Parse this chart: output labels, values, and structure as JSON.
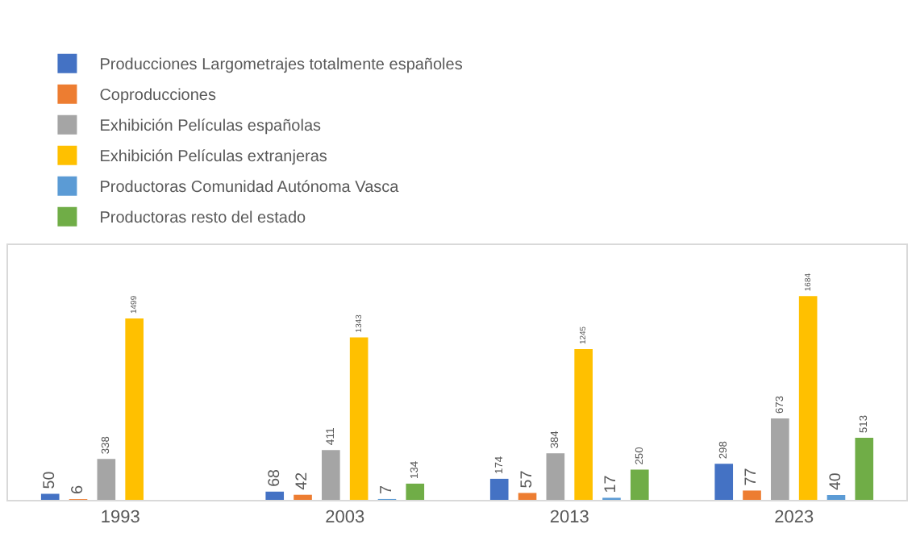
{
  "chart_data": {
    "type": "bar",
    "categories": [
      "1993",
      "2003",
      "2013",
      "2023"
    ],
    "series": [
      {
        "name": "Producciones Largometrajes totalmente españoles",
        "color": "#4472c4",
        "values": [
          50,
          68,
          174,
          298
        ]
      },
      {
        "name": "Coproducciones",
        "color": "#ed7d31",
        "values": [
          6,
          42,
          57,
          77
        ]
      },
      {
        "name": "Exhibición Películas españolas",
        "color": "#a5a5a5",
        "values": [
          338,
          411,
          384,
          673
        ]
      },
      {
        "name": "Exhibición Películas extranjeras",
        "color": "#ffc000",
        "values": [
          1499,
          1343,
          1245,
          1684
        ]
      },
      {
        "name": "Productoras Comunidad Autónoma Vasca",
        "color": "#5b9bd5",
        "values": [
          null,
          7,
          17,
          40
        ]
      },
      {
        "name": "Productoras resto del estado",
        "color": "#70ad47",
        "values": [
          null,
          134,
          250,
          513
        ]
      }
    ],
    "data_labels": true,
    "legend": "top left",
    "grid": false
  }
}
